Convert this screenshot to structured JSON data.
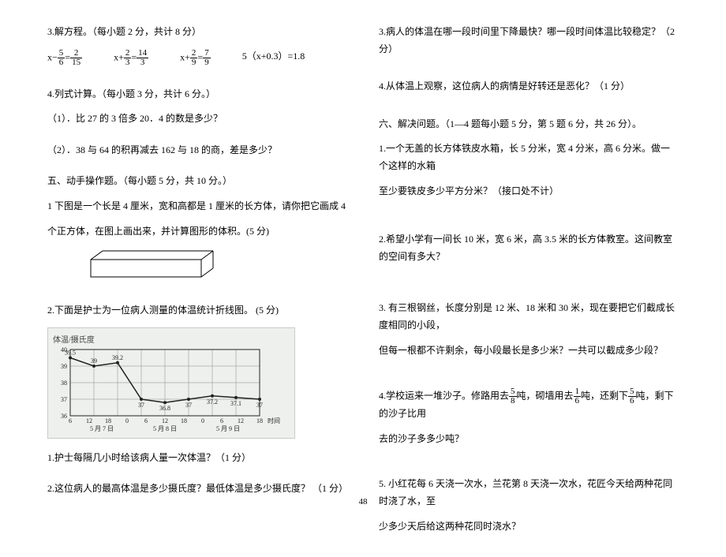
{
  "left": {
    "q3_title": "3.解方程。（每小题 2 分，共计 8 分）",
    "eq1_lhs": "x−",
    "eq1_f1n": "5",
    "eq1_f1d": "6",
    "eq1_mid": "=",
    "eq1_f2n": "2",
    "eq1_f2d": "15",
    "eq2_lhs": "x+",
    "eq2_f1n": "2",
    "eq2_f1d": "3",
    "eq2_mid": "=",
    "eq2_f2n": "14",
    "eq2_f2d": "3",
    "eq3_lhs": "x+",
    "eq3_f1n": "2",
    "eq3_f1d": "9",
    "eq3_mid": "=",
    "eq3_f2n": "7",
    "eq3_f2d": "9",
    "eq4": "5（x+0.3）=1.8",
    "q4_title": "4.列式计算。（每小题 3 分，共计 6 分。）",
    "q4_1": "（1）．比 27 的 3 倍多 20．4 的数是多少？",
    "q4_2": "（2）．38 与 64 的积再减去 162 与 18 的商，差是多少？",
    "q5_title": "五、动手操作题。（每小题 5 分，共 10 分。）",
    "q5_1a": "1 下图是一个长是 4 厘米，宽和高都是 1 厘米的长方体，请你把它画成 4",
    "q5_1b": "个正方体，在图上画出来，并计算图形的体积。(5 分)",
    "q5_2": "2.下面是护士为一位病人测量的体温统计折线图。 (5 分)",
    "chart_title": "体温/摄氏度",
    "yticks": [
      40,
      39,
      38,
      37,
      36
    ],
    "xticks_hours": [
      "6",
      "12",
      "18",
      "0",
      "6",
      "12",
      "18",
      "0",
      "6",
      "12",
      "18"
    ],
    "days_row": [
      "5 月 7 日",
      "5 月 8 日",
      "5 月 9 日"
    ],
    "x_axis_end": "时间",
    "data_labels": [
      "39.5",
      "39",
      "39.2",
      "37",
      "36.8",
      "37",
      "37.2",
      "37.1",
      "37"
    ],
    "data_values": [
      39.5,
      39,
      39.2,
      37,
      36.8,
      37,
      37.2,
      37.1,
      37
    ],
    "sub1": "1.护士每隔几小时给该病人量一次体温？（1 分）",
    "sub2": "2.这位病人的最高体温是多少摄氏度？最低体温是多少摄氏度？ （1 分）"
  },
  "right": {
    "r1": "3.病人的体温在哪一段时间里下降最快？哪一段时间体温比较稳定？（2 分）",
    "r2": "4.从体温上观察，这位病人的病情是好转还是恶化？（1 分）",
    "r3": "六、解决问题。（1—4 题每小题 5 分，第 5 题 6 分，共 26 分）。",
    "r4a": "1.一个无盖的长方体铁皮水箱，长 5 分米，宽 4 分米，高 6 分米。做一个这样的水箱",
    "r4b": "至少要铁皮多少平方分米？（接口处不计）",
    "r5": "2.希望小学有一间长 10 米，宽 6 米，高 3.5 米的长方体教室。这间教室的空间有多大？",
    "r6a": "3. 有三根钢丝，长度分别是 12 米、18 米和 30 米，现在要把它们截成长度相同的小段，",
    "r6b": "但每一根都不许剩余，每小段最长是多少米？一共可以截成多少段？",
    "r7a_pre": "4.学校运来一堆沙子。修路用去",
    "r7a_f1n": "5",
    "r7a_f1d": "8",
    "r7a_mid1": "吨，砌墙用去",
    "r7a_f2n": "1",
    "r7a_f2d": "6",
    "r7a_mid2": "吨，还剩下",
    "r7a_f3n": "5",
    "r7a_f3d": "6",
    "r7a_post": "吨，剩下的沙子比用",
    "r7b": "去的沙子多多少吨？",
    "r8a": "5. 小红花每 6 天浇一次水，兰花第 8 天浇一次水，花匠今天给两种花同时浇了水，至",
    "r8b": "少多少天后给这两种花同时浇水？"
  },
  "page_number": "48"
}
